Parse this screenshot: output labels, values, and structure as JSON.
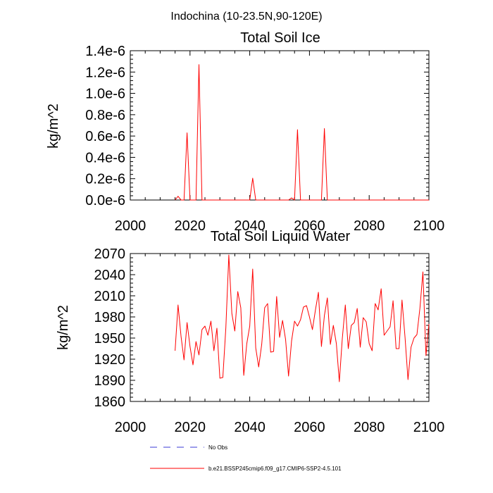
{
  "figure_title": "Indochina (10-23.5N,90-120E)",
  "legend": [
    {
      "label": "No Obs",
      "color": "#3b3bd6",
      "style": "dashed"
    },
    {
      "label": "b.e21.BSSP245cmip6.f09_g17.CMIP6-SSP2-4.5.101",
      "color": "#ff0000",
      "style": "solid"
    }
  ],
  "chart_data": [
    {
      "type": "line",
      "title": "Total Soil Ice",
      "xlabel": "",
      "ylabel": "kg/m^2",
      "xlim": [
        2000,
        2100
      ],
      "ylim": [
        0.0,
        1.4e-06
      ],
      "xticks": [
        2000,
        2020,
        2040,
        2060,
        2080,
        2100
      ],
      "xtick_labels": [
        "2000",
        "2020",
        "2040",
        "2060",
        "2080",
        "2100"
      ],
      "yticks": [
        0,
        2e-07,
        4e-07,
        6e-07,
        8e-07,
        1e-06,
        1.2e-06,
        1.4e-06
      ],
      "ytick_labels": [
        "0.0e-6",
        "0.2e-6",
        "0.4e-6",
        "0.6e-6",
        "0.8e-6",
        "1.0e-6",
        "1.2e-6",
        "1.4e-6"
      ],
      "series": [
        {
          "color": "#ff0000",
          "x": [
            2015,
            2016,
            2017,
            2018,
            2019,
            2020,
            2021,
            2022,
            2023,
            2024,
            2025,
            2026,
            2027,
            2028,
            2029,
            2030,
            2031,
            2032,
            2033,
            2034,
            2035,
            2036,
            2037,
            2038,
            2039,
            2040,
            2041,
            2042,
            2043,
            2044,
            2045,
            2046,
            2047,
            2048,
            2049,
            2050,
            2051,
            2052,
            2053,
            2054,
            2055,
            2056,
            2057,
            2058,
            2059,
            2060,
            2061,
            2062,
            2063,
            2064,
            2065,
            2066,
            2067,
            2068,
            2069,
            2070,
            2071,
            2072,
            2073,
            2074,
            2075,
            2076,
            2077,
            2078,
            2079,
            2080,
            2081,
            2082,
            2083,
            2084,
            2085,
            2086,
            2087,
            2088,
            2089,
            2090,
            2091,
            2092,
            2093,
            2094,
            2095,
            2096,
            2097,
            2098,
            2099,
            2100
          ],
          "values": [
            0,
            3.5e-08,
            0,
            0,
            6.3e-07,
            0,
            0,
            0,
            1.27e-06,
            0,
            0,
            0,
            0,
            0,
            0,
            0,
            0,
            0,
            0,
            0,
            0,
            0,
            0,
            0,
            0,
            0,
            2.05e-07,
            0,
            0,
            0,
            0,
            0,
            0,
            0,
            0,
            0,
            0,
            0,
            0,
            2e-08,
            0,
            6.6e-07,
            0,
            0,
            0,
            0,
            0,
            0,
            0,
            0,
            6.7e-07,
            0,
            0,
            0,
            0,
            0,
            0,
            0,
            0,
            0,
            0,
            0,
            0,
            0,
            0,
            0,
            0,
            0,
            0,
            0,
            0,
            0,
            0,
            0,
            0,
            0,
            0,
            0,
            0,
            0,
            0,
            0,
            0,
            0,
            0,
            0
          ]
        }
      ]
    },
    {
      "type": "line",
      "title": "Total Soil Liquid Water",
      "xlabel": "",
      "ylabel": "kg/m^2",
      "xlim": [
        2000,
        2100
      ],
      "ylim": [
        1860,
        2070
      ],
      "xticks": [
        2000,
        2020,
        2040,
        2060,
        2080,
        2100
      ],
      "xtick_labels": [
        "2000",
        "2020",
        "2040",
        "2060",
        "2080",
        "2100"
      ],
      "yticks": [
        1860,
        1890,
        1920,
        1950,
        1980,
        2010,
        2040,
        2070
      ],
      "ytick_labels": [
        "1860",
        "1890",
        "1920",
        "1950",
        "1980",
        "2010",
        "2040",
        "2070"
      ],
      "series": [
        {
          "color": "#ff0000",
          "x": [
            2015,
            2016,
            2017,
            2018,
            2019,
            2020,
            2021,
            2022,
            2023,
            2024,
            2025,
            2026,
            2027,
            2028,
            2029,
            2030,
            2031,
            2032,
            2033,
            2034,
            2035,
            2036,
            2037,
            2038,
            2039,
            2040,
            2041,
            2042,
            2043,
            2044,
            2045,
            2046,
            2047,
            2048,
            2049,
            2050,
            2051,
            2052,
            2053,
            2054,
            2055,
            2056,
            2057,
            2058,
            2059,
            2060,
            2061,
            2062,
            2063,
            2064,
            2065,
            2066,
            2067,
            2068,
            2069,
            2070,
            2071,
            2072,
            2073,
            2074,
            2075,
            2076,
            2077,
            2078,
            2079,
            2080,
            2081,
            2082,
            2083,
            2084,
            2085,
            2086,
            2087,
            2088,
            2089,
            2090,
            2091,
            2092,
            2093,
            2094,
            2095,
            2096,
            2097,
            2098,
            2099,
            2100
          ],
          "values": [
            1932,
            1997,
            1952,
            1919,
            1972,
            1938,
            1912,
            1945,
            1926,
            1962,
            1967,
            1954,
            1974,
            1932,
            1964,
            1893,
            1894,
            1965,
            2068,
            1985,
            1960,
            2016,
            1993,
            1897,
            1942,
            1967,
            2048,
            1936,
            1909,
            1941,
            1993,
            1999,
            1930,
            1931,
            2009,
            1951,
            1975,
            1948,
            1896,
            1946,
            1974,
            1967,
            1976,
            1994,
            1996,
            1980,
            1962,
            1990,
            2015,
            1938,
            1982,
            2007,
            1941,
            1968,
            1942,
            1888,
            1949,
            1997,
            1935,
            1968,
            1972,
            1992,
            1937,
            1979,
            1973,
            1942,
            1932,
            1999,
            1990,
            2020,
            1954,
            1960,
            1966,
            2003,
            1935,
            1935,
            2004,
            1951,
            1891,
            1937,
            1950,
            1955,
            1993,
            2044,
            1925,
            1970
          ]
        }
      ]
    }
  ]
}
